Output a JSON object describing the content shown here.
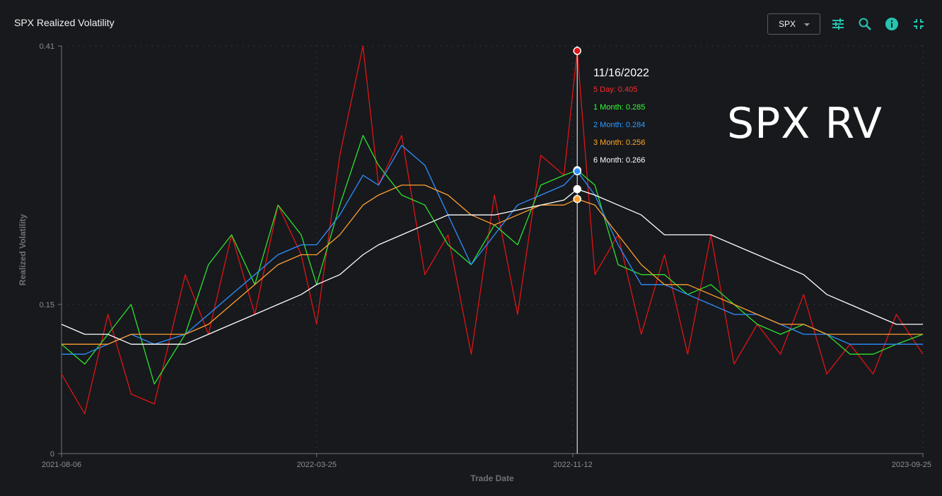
{
  "header": {
    "title": "SPX Realized Volatility"
  },
  "toolbar": {
    "ticker": "SPX",
    "icons": [
      "sliders-icon",
      "zoom-icon",
      "info-icon",
      "collapse-icon"
    ],
    "accent": "#27c4b0"
  },
  "watermark": "SPX RV",
  "tooltip": {
    "date": "11/16/2022",
    "rows": [
      {
        "label": "5 Day: 0.405",
        "color": "#ff2a2a"
      },
      {
        "label": "1 Month: 0.285",
        "color": "#33ff33"
      },
      {
        "label": "2 Month: 0.284",
        "color": "#2f9bff"
      },
      {
        "label": "3 Month: 0.256",
        "color": "#ffa726"
      },
      {
        "label": "6 Month: 0.266",
        "color": "#ffffff"
      }
    ]
  },
  "chart_data": {
    "type": "line",
    "xlabel": "Trade Date",
    "ylabel": "Realized Volatility",
    "x_range": [
      "2021-08-06",
      "2023-09-25"
    ],
    "ylim": [
      0,
      0.41
    ],
    "y_ticks": [
      "0",
      "0.15",
      "0.41"
    ],
    "x_ticks": [
      "2021-08-06",
      "2022-03-25",
      "2022-11-12",
      "2023-09-25"
    ],
    "grid": true,
    "cursor_date": "2022-11-16",
    "series": [
      {
        "name": "5 Day",
        "color": "#e01414",
        "x": [
          "2021-08-06",
          "2021-08-27",
          "2021-09-17",
          "2021-10-08",
          "2021-10-29",
          "2021-11-26",
          "2021-12-17",
          "2022-01-07",
          "2022-01-28",
          "2022-02-18",
          "2022-03-11",
          "2022-03-25",
          "2022-04-15",
          "2022-05-06",
          "2022-05-20",
          "2022-06-10",
          "2022-07-01",
          "2022-07-22",
          "2022-08-12",
          "2022-09-02",
          "2022-09-23",
          "2022-10-14",
          "2022-11-04",
          "2022-11-16",
          "2022-12-02",
          "2022-12-23",
          "2023-01-13",
          "2023-02-03",
          "2023-02-24",
          "2023-03-17",
          "2023-04-07",
          "2023-04-28",
          "2023-05-19",
          "2023-06-09",
          "2023-06-30",
          "2023-07-21",
          "2023-08-11",
          "2023-09-01",
          "2023-09-25"
        ],
        "values": [
          0.08,
          0.04,
          0.14,
          0.06,
          0.05,
          0.18,
          0.12,
          0.22,
          0.14,
          0.25,
          0.2,
          0.13,
          0.3,
          0.41,
          0.27,
          0.32,
          0.18,
          0.22,
          0.1,
          0.26,
          0.14,
          0.3,
          0.28,
          0.405,
          0.18,
          0.22,
          0.12,
          0.2,
          0.1,
          0.22,
          0.09,
          0.13,
          0.1,
          0.16,
          0.08,
          0.11,
          0.08,
          0.14,
          0.1
        ]
      },
      {
        "name": "1 Month",
        "color": "#2fe02f",
        "x": [
          "2021-08-06",
          "2021-08-27",
          "2021-09-17",
          "2021-10-08",
          "2021-10-29",
          "2021-11-26",
          "2021-12-17",
          "2022-01-07",
          "2022-01-28",
          "2022-02-18",
          "2022-03-11",
          "2022-03-25",
          "2022-04-15",
          "2022-05-06",
          "2022-05-20",
          "2022-06-10",
          "2022-07-01",
          "2022-07-22",
          "2022-08-12",
          "2022-09-02",
          "2022-09-23",
          "2022-10-14",
          "2022-11-04",
          "2022-11-16",
          "2022-12-02",
          "2022-12-23",
          "2023-01-13",
          "2023-02-03",
          "2023-02-24",
          "2023-03-17",
          "2023-04-07",
          "2023-04-28",
          "2023-05-19",
          "2023-06-09",
          "2023-06-30",
          "2023-07-21",
          "2023-08-11",
          "2023-09-01",
          "2023-09-25"
        ],
        "values": [
          0.11,
          0.09,
          0.12,
          0.15,
          0.07,
          0.12,
          0.19,
          0.22,
          0.17,
          0.25,
          0.22,
          0.17,
          0.25,
          0.32,
          0.29,
          0.26,
          0.25,
          0.21,
          0.19,
          0.23,
          0.21,
          0.27,
          0.28,
          0.285,
          0.27,
          0.19,
          0.18,
          0.18,
          0.16,
          0.17,
          0.15,
          0.13,
          0.12,
          0.13,
          0.12,
          0.1,
          0.1,
          0.11,
          0.12
        ]
      },
      {
        "name": "2 Month",
        "color": "#2f8fff",
        "x": [
          "2021-08-06",
          "2021-08-27",
          "2021-09-17",
          "2021-10-08",
          "2021-10-29",
          "2021-11-26",
          "2021-12-17",
          "2022-01-07",
          "2022-01-28",
          "2022-02-18",
          "2022-03-11",
          "2022-03-25",
          "2022-04-15",
          "2022-05-06",
          "2022-05-20",
          "2022-06-10",
          "2022-07-01",
          "2022-07-22",
          "2022-08-12",
          "2022-09-02",
          "2022-09-23",
          "2022-10-14",
          "2022-11-04",
          "2022-11-16",
          "2022-12-02",
          "2022-12-23",
          "2023-01-13",
          "2023-02-03",
          "2023-02-24",
          "2023-03-17",
          "2023-04-07",
          "2023-04-28",
          "2023-05-19",
          "2023-06-09",
          "2023-06-30",
          "2023-07-21",
          "2023-08-11",
          "2023-09-01",
          "2023-09-25"
        ],
        "values": [
          0.1,
          0.1,
          0.11,
          0.12,
          0.11,
          0.12,
          0.14,
          0.16,
          0.18,
          0.2,
          0.21,
          0.21,
          0.24,
          0.28,
          0.27,
          0.31,
          0.29,
          0.24,
          0.19,
          0.22,
          0.25,
          0.26,
          0.27,
          0.284,
          0.26,
          0.21,
          0.17,
          0.17,
          0.16,
          0.15,
          0.14,
          0.14,
          0.13,
          0.12,
          0.12,
          0.11,
          0.11,
          0.11,
          0.11
        ]
      },
      {
        "name": "3 Month",
        "color": "#ff9f2f",
        "x": [
          "2021-08-06",
          "2021-08-27",
          "2021-09-17",
          "2021-10-08",
          "2021-10-29",
          "2021-11-26",
          "2021-12-17",
          "2022-01-07",
          "2022-01-28",
          "2022-02-18",
          "2022-03-11",
          "2022-03-25",
          "2022-04-15",
          "2022-05-06",
          "2022-05-20",
          "2022-06-10",
          "2022-07-01",
          "2022-07-22",
          "2022-08-12",
          "2022-09-02",
          "2022-09-23",
          "2022-10-14",
          "2022-11-04",
          "2022-11-16",
          "2022-12-02",
          "2022-12-23",
          "2023-01-13",
          "2023-02-03",
          "2023-02-24",
          "2023-03-17",
          "2023-04-07",
          "2023-04-28",
          "2023-05-19",
          "2023-06-09",
          "2023-06-30",
          "2023-07-21",
          "2023-08-11",
          "2023-09-01",
          "2023-09-25"
        ],
        "values": [
          0.11,
          0.11,
          0.11,
          0.12,
          0.12,
          0.12,
          0.13,
          0.15,
          0.17,
          0.19,
          0.2,
          0.2,
          0.22,
          0.25,
          0.26,
          0.27,
          0.27,
          0.26,
          0.24,
          0.23,
          0.24,
          0.25,
          0.25,
          0.256,
          0.25,
          0.22,
          0.19,
          0.17,
          0.17,
          0.16,
          0.15,
          0.14,
          0.13,
          0.13,
          0.12,
          0.12,
          0.12,
          0.12,
          0.12
        ]
      },
      {
        "name": "6 Month",
        "color": "#ffffff",
        "x": [
          "2021-08-06",
          "2021-08-27",
          "2021-09-17",
          "2021-10-08",
          "2021-10-29",
          "2021-11-26",
          "2021-12-17",
          "2022-01-07",
          "2022-01-28",
          "2022-02-18",
          "2022-03-11",
          "2022-03-25",
          "2022-04-15",
          "2022-05-06",
          "2022-05-20",
          "2022-06-10",
          "2022-07-01",
          "2022-07-22",
          "2022-08-12",
          "2022-09-02",
          "2022-09-23",
          "2022-10-14",
          "2022-11-04",
          "2022-11-16",
          "2022-12-02",
          "2022-12-23",
          "2023-01-13",
          "2023-02-03",
          "2023-02-24",
          "2023-03-17",
          "2023-04-07",
          "2023-04-28",
          "2023-05-19",
          "2023-06-09",
          "2023-06-30",
          "2023-07-21",
          "2023-08-11",
          "2023-09-01",
          "2023-09-25"
        ],
        "values": [
          0.13,
          0.12,
          0.12,
          0.11,
          0.11,
          0.11,
          0.12,
          0.13,
          0.14,
          0.15,
          0.16,
          0.17,
          0.18,
          0.2,
          0.21,
          0.22,
          0.23,
          0.24,
          0.24,
          0.24,
          0.245,
          0.25,
          0.255,
          0.266,
          0.26,
          0.25,
          0.24,
          0.22,
          0.22,
          0.22,
          0.21,
          0.2,
          0.19,
          0.18,
          0.16,
          0.15,
          0.14,
          0.13,
          0.13
        ]
      }
    ]
  }
}
